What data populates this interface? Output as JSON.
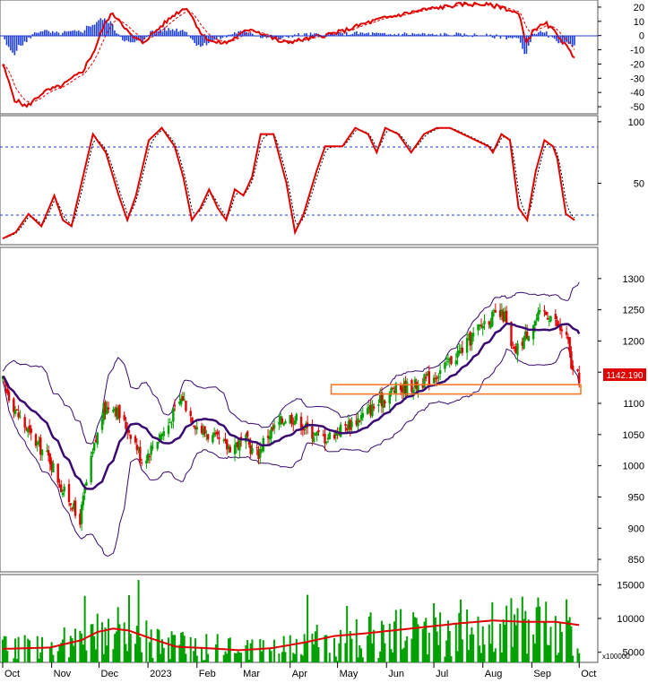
{
  "chart_data": {
    "type": "candlestick",
    "months": [
      {
        "label": "Oct",
        "day": 0
      },
      {
        "label": "Nov",
        "day": 31
      },
      {
        "label": "Dec",
        "day": 61
      },
      {
        "label": "2023",
        "day": 92
      },
      {
        "label": "Feb",
        "day": 123
      },
      {
        "label": "Mar",
        "day": 151
      },
      {
        "label": "Apr",
        "day": 182
      },
      {
        "label": "May",
        "day": 212
      },
      {
        "label": "Jun",
        "day": 243
      },
      {
        "label": "Jul",
        "day": 273
      },
      {
        "label": "Aug",
        "day": 304
      },
      {
        "label": "Sep",
        "day": 335
      },
      {
        "label": "Oct",
        "day": 365
      }
    ],
    "last_price_label": "1142.190",
    "macd_panel": {
      "yticks": [
        "20",
        "10",
        "0",
        "-10",
        "-20",
        "-30",
        "-40",
        "-50"
      ],
      "tick_values": [
        20,
        10,
        0,
        -10,
        -20,
        -30,
        -40,
        -50
      ],
      "ylim": [
        -55,
        25
      ],
      "macd_color": "#e00000",
      "signal_color": "#e00000",
      "hist_color": "#1f3fd8"
    },
    "stoch_panel": {
      "yticks": [
        "100",
        "50"
      ],
      "tick_values": [
        100,
        50
      ],
      "ylim": [
        0,
        105
      ],
      "levels": [
        80,
        20
      ],
      "line_color": "#e00000"
    },
    "price_panel": {
      "yticks": [
        "1300",
        "1250",
        "1200",
        "1150",
        "1100",
        "1050",
        "1000",
        "950",
        "900",
        "850"
      ],
      "tick_values": [
        1300,
        1250,
        1200,
        1150,
        1100,
        1050,
        1000,
        950,
        900,
        850
      ],
      "ylim": [
        830,
        1350
      ],
      "up_color": "#00a000",
      "down_color": "#e00000",
      "ma_color": "#3a0a70",
      "band_color": "#3a0a70",
      "zone_color": "#ff7020",
      "support_zone": {
        "day_start": 208,
        "day_end": 366,
        "low": 1115,
        "high": 1130
      }
    },
    "volume_panel": {
      "yticks": [
        "15000",
        "10000",
        "5000"
      ],
      "tick_values": [
        15000,
        10000,
        5000
      ],
      "ylim": [
        3500,
        16500
      ],
      "unit_label": "x100000",
      "bar_color": "#00a000",
      "ma_color": "#e00000"
    },
    "price_anchors": [
      [
        0,
        1135
      ],
      [
        10,
        1080
      ],
      [
        20,
        1040
      ],
      [
        30,
        1010
      ],
      [
        38,
        960
      ],
      [
        44,
        940
      ],
      [
        48,
        900
      ],
      [
        52,
        960
      ],
      [
        58,
        1030
      ],
      [
        64,
        1090
      ],
      [
        70,
        1100
      ],
      [
        76,
        1070
      ],
      [
        82,
        1050
      ],
      [
        88,
        1010
      ],
      [
        92,
        1020
      ],
      [
        98,
        1045
      ],
      [
        104,
        1060
      ],
      [
        110,
        1095
      ],
      [
        114,
        1110
      ],
      [
        118,
        1085
      ],
      [
        124,
        1060
      ],
      [
        130,
        1050
      ],
      [
        136,
        1040
      ],
      [
        142,
        1030
      ],
      [
        148,
        1035
      ],
      [
        154,
        1040
      ],
      [
        158,
        1025
      ],
      [
        162,
        1020
      ],
      [
        166,
        1045
      ],
      [
        172,
        1060
      ],
      [
        180,
        1080
      ],
      [
        186,
        1075
      ],
      [
        192,
        1060
      ],
      [
        198,
        1050
      ],
      [
        204,
        1045
      ],
      [
        208,
        1050
      ],
      [
        214,
        1060
      ],
      [
        222,
        1070
      ],
      [
        230,
        1085
      ],
      [
        238,
        1100
      ],
      [
        246,
        1120
      ],
      [
        254,
        1125
      ],
      [
        262,
        1130
      ],
      [
        270,
        1140
      ],
      [
        276,
        1150
      ],
      [
        284,
        1170
      ],
      [
        292,
        1190
      ],
      [
        300,
        1215
      ],
      [
        306,
        1235
      ],
      [
        312,
        1240
      ],
      [
        318,
        1240
      ],
      [
        321,
        1190
      ],
      [
        324,
        1180
      ],
      [
        330,
        1205
      ],
      [
        336,
        1230
      ],
      [
        342,
        1245
      ],
      [
        348,
        1240
      ],
      [
        352,
        1220
      ],
      [
        356,
        1215
      ],
      [
        358,
        1195
      ],
      [
        360,
        1160
      ],
      [
        362,
        1140
      ],
      [
        365,
        1142
      ]
    ],
    "stoch_anchors": [
      [
        0,
        5
      ],
      [
        6,
        10
      ],
      [
        12,
        25
      ],
      [
        18,
        15
      ],
      [
        24,
        40
      ],
      [
        28,
        20
      ],
      [
        32,
        15
      ],
      [
        36,
        45
      ],
      [
        42,
        90
      ],
      [
        48,
        75
      ],
      [
        54,
        40
      ],
      [
        58,
        20
      ],
      [
        62,
        40
      ],
      [
        68,
        85
      ],
      [
        74,
        95
      ],
      [
        80,
        80
      ],
      [
        84,
        55
      ],
      [
        88,
        20
      ],
      [
        92,
        30
      ],
      [
        96,
        45
      ],
      [
        100,
        30
      ],
      [
        104,
        20
      ],
      [
        108,
        45
      ],
      [
        112,
        40
      ],
      [
        116,
        55
      ],
      [
        120,
        90
      ],
      [
        126,
        90
      ],
      [
        132,
        50
      ],
      [
        136,
        10
      ],
      [
        140,
        25
      ],
      [
        146,
        60
      ],
      [
        150,
        80
      ],
      [
        158,
        80
      ],
      [
        164,
        95
      ],
      [
        170,
        90
      ],
      [
        174,
        75
      ],
      [
        178,
        95
      ],
      [
        184,
        90
      ],
      [
        190,
        75
      ],
      [
        196,
        90
      ],
      [
        202,
        95
      ],
      [
        208,
        95
      ],
      [
        214,
        90
      ],
      [
        220,
        85
      ],
      [
        226,
        80
      ],
      [
        228,
        75
      ],
      [
        232,
        90
      ],
      [
        236,
        85
      ],
      [
        240,
        30
      ],
      [
        244,
        20
      ],
      [
        248,
        60
      ],
      [
        252,
        85
      ],
      [
        256,
        80
      ],
      [
        258,
        70
      ],
      [
        262,
        25
      ],
      [
        266,
        20
      ]
    ],
    "macd_anchors": [
      [
        0,
        -20
      ],
      [
        6,
        -45
      ],
      [
        12,
        -50
      ],
      [
        20,
        -40
      ],
      [
        30,
        -35
      ],
      [
        40,
        -25
      ],
      [
        46,
        -10
      ],
      [
        50,
        5
      ],
      [
        54,
        15
      ],
      [
        58,
        12
      ],
      [
        64,
        0
      ],
      [
        70,
        -5
      ],
      [
        78,
        5
      ],
      [
        86,
        15
      ],
      [
        92,
        20
      ],
      [
        96,
        10
      ],
      [
        100,
        0
      ],
      [
        106,
        -5
      ],
      [
        112,
        -5
      ],
      [
        118,
        0
      ],
      [
        124,
        5
      ],
      [
        132,
        0
      ],
      [
        140,
        -5
      ],
      [
        150,
        -3
      ],
      [
        160,
        0
      ],
      [
        170,
        3
      ],
      [
        180,
        8
      ],
      [
        190,
        12
      ],
      [
        200,
        15
      ],
      [
        210,
        18
      ],
      [
        220,
        20
      ],
      [
        230,
        22
      ],
      [
        240,
        22
      ],
      [
        250,
        20
      ],
      [
        258,
        15
      ],
      [
        262,
        -5
      ],
      [
        266,
        5
      ],
      [
        272,
        8
      ],
      [
        278,
        0
      ],
      [
        283,
        -10
      ],
      [
        286,
        -15
      ]
    ],
    "volume_anchors": [
      [
        0,
        5500
      ],
      [
        30,
        5700
      ],
      [
        50,
        6800
      ],
      [
        60,
        8000
      ],
      [
        70,
        8500
      ],
      [
        80,
        8200
      ],
      [
        92,
        7200
      ],
      [
        110,
        5800
      ],
      [
        130,
        5600
      ],
      [
        150,
        5300
      ],
      [
        170,
        5600
      ],
      [
        190,
        6400
      ],
      [
        210,
        7400
      ],
      [
        230,
        7800
      ],
      [
        250,
        8300
      ],
      [
        270,
        8800
      ],
      [
        290,
        9300
      ],
      [
        310,
        9700
      ],
      [
        330,
        9500
      ],
      [
        350,
        9500
      ],
      [
        366,
        9000
      ]
    ]
  }
}
